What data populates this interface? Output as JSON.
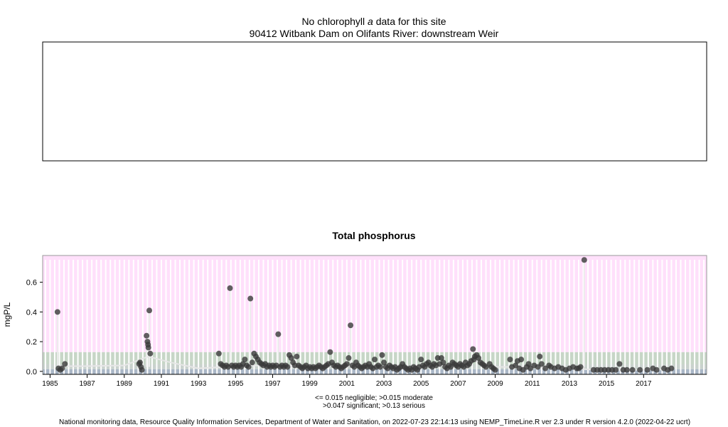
{
  "top_panel": {
    "title_line1_prefix": "No chlorophyll",
    "title_line1_italic": "a",
    "title_line1_suffix": "data for this site",
    "title_line2": "90412 Witbank Dam on Olifants River: downstream Weir"
  },
  "footer": {
    "legend_line1": "<= 0.015 negligible; >0.015 moderate",
    "legend_line2": ">0.047 significant; >0.13 serious",
    "credit": "National monitoring data, Resource Quality Information Services, Department of Water and Sanitation, on 2022-07-23 22:14:13 using NEMP_TimeLine.R ver 2.3 under R version 4.2.0 (2022-04-22 ucrt)"
  },
  "colors": {
    "serious": "#ffe0fb",
    "significant": "#c7d6c7",
    "moderate": "#c9d2cd",
    "negligible": "#a9b6c6",
    "point": "#3a3a3a",
    "trend": "#e6e6e6"
  },
  "chart_data": {
    "type": "scatter",
    "title": "Total phosphorus",
    "ylabel": "mgP/L",
    "xlabel": "",
    "xlim": [
      1984.6,
      2020.4
    ],
    "ylim": [
      -0.02,
      0.78
    ],
    "x_ticks": [
      1985,
      1987,
      1989,
      1991,
      1993,
      1995,
      1997,
      1999,
      2001,
      2003,
      2005,
      2007,
      2009,
      2011,
      2013,
      2015,
      2017
    ],
    "x_tick_labels": [
      "1985",
      "1987",
      "1989",
      "1991",
      "1993",
      "1995",
      "1997",
      "1999",
      "2001",
      "2003",
      "2005",
      "2007",
      "2009",
      "2011",
      "2013",
      "2015",
      "2017"
    ],
    "y_ticks": [
      0.0,
      0.2,
      0.4,
      0.6
    ],
    "y_tick_labels": [
      "0.0",
      "0.2",
      "0.4",
      "0.6"
    ],
    "thresholds": [
      {
        "name": "negligible",
        "upper": 0.015
      },
      {
        "name": "moderate",
        "upper": 0.047
      },
      {
        "name": "significant",
        "upper": 0.13
      },
      {
        "name": "serious",
        "upper": 0.78
      }
    ],
    "grid": "vertical",
    "series": [
      {
        "points": [
          [
            1985.4,
            0.4
          ],
          [
            1985.45,
            0.02
          ],
          [
            1985.55,
            0.01
          ],
          [
            1985.65,
            0.02
          ],
          [
            1985.8,
            0.05
          ],
          [
            1989.8,
            0.05
          ],
          [
            1989.85,
            0.06
          ],
          [
            1989.9,
            0.03
          ],
          [
            1989.95,
            0.01
          ],
          [
            1990.2,
            0.24
          ],
          [
            1990.25,
            0.2
          ],
          [
            1990.28,
            0.18
          ],
          [
            1990.3,
            0.16
          ],
          [
            1990.35,
            0.41
          ],
          [
            1990.4,
            0.12
          ],
          [
            1994.1,
            0.12
          ],
          [
            1994.2,
            0.05
          ],
          [
            1994.3,
            0.04
          ],
          [
            1994.4,
            0.03
          ],
          [
            1994.5,
            0.04
          ],
          [
            1994.6,
            0.03
          ],
          [
            1994.7,
            0.56
          ],
          [
            1994.8,
            0.04
          ],
          [
            1994.9,
            0.03
          ],
          [
            1995.0,
            0.04
          ],
          [
            1995.1,
            0.03
          ],
          [
            1995.2,
            0.04
          ],
          [
            1995.3,
            0.03
          ],
          [
            1995.4,
            0.05
          ],
          [
            1995.5,
            0.08
          ],
          [
            1995.6,
            0.04
          ],
          [
            1995.7,
            0.03
          ],
          [
            1995.8,
            0.49
          ],
          [
            1995.9,
            0.06
          ],
          [
            1996.0,
            0.12
          ],
          [
            1996.1,
            0.1
          ],
          [
            1996.2,
            0.08
          ],
          [
            1996.3,
            0.06
          ],
          [
            1996.4,
            0.05
          ],
          [
            1996.5,
            0.04
          ],
          [
            1996.6,
            0.05
          ],
          [
            1996.7,
            0.03
          ],
          [
            1996.8,
            0.04
          ],
          [
            1996.9,
            0.03
          ],
          [
            1997.0,
            0.04
          ],
          [
            1997.1,
            0.03
          ],
          [
            1997.2,
            0.04
          ],
          [
            1997.3,
            0.25
          ],
          [
            1997.4,
            0.03
          ],
          [
            1997.5,
            0.04
          ],
          [
            1997.6,
            0.03
          ],
          [
            1997.7,
            0.04
          ],
          [
            1997.8,
            0.03
          ],
          [
            1997.9,
            0.11
          ],
          [
            1998.0,
            0.09
          ],
          [
            1998.1,
            0.06
          ],
          [
            1998.2,
            0.04
          ],
          [
            1998.3,
            0.1
          ],
          [
            1998.4,
            0.04
          ],
          [
            1998.5,
            0.03
          ],
          [
            1998.6,
            0.02
          ],
          [
            1998.7,
            0.03
          ],
          [
            1998.8,
            0.04
          ],
          [
            1998.9,
            0.02
          ],
          [
            1999.0,
            0.03
          ],
          [
            1999.1,
            0.02
          ],
          [
            1999.2,
            0.03
          ],
          [
            1999.3,
            0.02
          ],
          [
            1999.4,
            0.03
          ],
          [
            1999.5,
            0.04
          ],
          [
            1999.6,
            0.03
          ],
          [
            1999.7,
            0.02
          ],
          [
            1999.8,
            0.03
          ],
          [
            1999.9,
            0.04
          ],
          [
            2000.0,
            0.05
          ],
          [
            2000.1,
            0.13
          ],
          [
            2000.2,
            0.06
          ],
          [
            2000.3,
            0.04
          ],
          [
            2000.4,
            0.03
          ],
          [
            2000.5,
            0.04
          ],
          [
            2000.6,
            0.03
          ],
          [
            2000.7,
            0.02
          ],
          [
            2000.8,
            0.03
          ],
          [
            2000.9,
            0.04
          ],
          [
            2001.0,
            0.05
          ],
          [
            2001.1,
            0.09
          ],
          [
            2001.2,
            0.31
          ],
          [
            2001.3,
            0.04
          ],
          [
            2001.4,
            0.03
          ],
          [
            2001.5,
            0.06
          ],
          [
            2001.6,
            0.04
          ],
          [
            2001.7,
            0.03
          ],
          [
            2001.8,
            0.02
          ],
          [
            2001.9,
            0.03
          ],
          [
            2002.0,
            0.04
          ],
          [
            2002.1,
            0.03
          ],
          [
            2002.2,
            0.05
          ],
          [
            2002.3,
            0.03
          ],
          [
            2002.4,
            0.02
          ],
          [
            2002.5,
            0.08
          ],
          [
            2002.6,
            0.03
          ],
          [
            2002.7,
            0.04
          ],
          [
            2002.8,
            0.03
          ],
          [
            2002.9,
            0.11
          ],
          [
            2003.0,
            0.06
          ],
          [
            2003.1,
            0.03
          ],
          [
            2003.2,
            0.02
          ],
          [
            2003.3,
            0.04
          ],
          [
            2003.4,
            0.03
          ],
          [
            2003.5,
            0.02
          ],
          [
            2003.6,
            0.03
          ],
          [
            2003.7,
            0.01
          ],
          [
            2003.8,
            0.02
          ],
          [
            2003.9,
            0.03
          ],
          [
            2004.0,
            0.05
          ],
          [
            2004.1,
            0.03
          ],
          [
            2004.2,
            0.02
          ],
          [
            2004.3,
            0.01
          ],
          [
            2004.4,
            0.02
          ],
          [
            2004.5,
            0.01
          ],
          [
            2004.6,
            0.03
          ],
          [
            2004.7,
            0.02
          ],
          [
            2004.8,
            0.01
          ],
          [
            2004.9,
            0.03
          ],
          [
            2005.0,
            0.08
          ],
          [
            2005.1,
            0.04
          ],
          [
            2005.2,
            0.03
          ],
          [
            2005.3,
            0.05
          ],
          [
            2005.4,
            0.06
          ],
          [
            2005.5,
            0.04
          ],
          [
            2005.6,
            0.03
          ],
          [
            2005.7,
            0.05
          ],
          [
            2005.8,
            0.04
          ],
          [
            2005.9,
            0.09
          ],
          [
            2006.0,
            0.05
          ],
          [
            2006.1,
            0.09
          ],
          [
            2006.2,
            0.06
          ],
          [
            2006.3,
            0.03
          ],
          [
            2006.4,
            0.02
          ],
          [
            2006.5,
            0.04
          ],
          [
            2006.6,
            0.03
          ],
          [
            2006.7,
            0.06
          ],
          [
            2006.8,
            0.05
          ],
          [
            2006.9,
            0.04
          ],
          [
            2007.0,
            0.03
          ],
          [
            2007.1,
            0.05
          ],
          [
            2007.2,
            0.04
          ],
          [
            2007.3,
            0.03
          ],
          [
            2007.4,
            0.06
          ],
          [
            2007.5,
            0.04
          ],
          [
            2007.6,
            0.05
          ],
          [
            2007.7,
            0.07
          ],
          [
            2007.8,
            0.15
          ],
          [
            2007.85,
            0.08
          ],
          [
            2007.9,
            0.1
          ],
          [
            2008.0,
            0.11
          ],
          [
            2008.1,
            0.09
          ],
          [
            2008.2,
            0.06
          ],
          [
            2008.3,
            0.05
          ],
          [
            2008.4,
            0.04
          ],
          [
            2008.5,
            0.03
          ],
          [
            2008.7,
            0.05
          ],
          [
            2008.8,
            0.03
          ],
          [
            2008.9,
            0.02
          ],
          [
            2009.0,
            0.01
          ],
          [
            2009.8,
            0.08
          ],
          [
            2009.9,
            0.03
          ],
          [
            2010.1,
            0.04
          ],
          [
            2010.2,
            0.07
          ],
          [
            2010.3,
            0.02
          ],
          [
            2010.4,
            0.08
          ],
          [
            2010.5,
            0.01
          ],
          [
            2010.7,
            0.03
          ],
          [
            2010.8,
            0.05
          ],
          [
            2010.9,
            0.02
          ],
          [
            2011.1,
            0.04
          ],
          [
            2011.3,
            0.03
          ],
          [
            2011.4,
            0.1
          ],
          [
            2011.5,
            0.05
          ],
          [
            2011.7,
            0.02
          ],
          [
            2011.9,
            0.04
          ],
          [
            2012.0,
            0.03
          ],
          [
            2012.2,
            0.02
          ],
          [
            2012.4,
            0.03
          ],
          [
            2012.6,
            0.02
          ],
          [
            2012.8,
            0.01
          ],
          [
            2013.0,
            0.02
          ],
          [
            2013.2,
            0.03
          ],
          [
            2013.4,
            0.02
          ],
          [
            2013.5,
            0.02
          ],
          [
            2013.6,
            0.03
          ],
          [
            2013.8,
            0.75
          ],
          [
            2014.3,
            0.01
          ],
          [
            2014.5,
            0.01
          ],
          [
            2014.7,
            0.01
          ],
          [
            2014.9,
            0.01
          ],
          [
            2015.1,
            0.01
          ],
          [
            2015.3,
            0.01
          ],
          [
            2015.5,
            0.01
          ],
          [
            2015.7,
            0.05
          ],
          [
            2015.9,
            0.01
          ],
          [
            2016.1,
            0.01
          ],
          [
            2016.4,
            0.01
          ],
          [
            2016.8,
            0.01
          ],
          [
            2017.2,
            0.01
          ],
          [
            2017.5,
            0.02
          ],
          [
            2017.7,
            0.01
          ],
          [
            2018.1,
            0.02
          ],
          [
            2018.3,
            0.01
          ],
          [
            2018.5,
            0.02
          ]
        ]
      }
    ],
    "trend": [
      [
        1985.4,
        0.035
      ],
      [
        1987,
        0.035
      ],
      [
        1989,
        0.04
      ],
      [
        1990.3,
        0.1
      ],
      [
        1991.5,
        0.06
      ],
      [
        1993,
        0.02
      ],
      [
        1994.3,
        0.03
      ],
      [
        1996,
        0.04
      ],
      [
        1998,
        0.035
      ],
      [
        2000,
        0.035
      ],
      [
        2002,
        0.035
      ],
      [
        2004,
        0.025
      ],
      [
        2006,
        0.035
      ],
      [
        2007.9,
        0.07
      ],
      [
        2009,
        0.03
      ],
      [
        2011,
        0.03
      ],
      [
        2013,
        0.02
      ],
      [
        2014.5,
        0.01
      ],
      [
        2016.5,
        0.01
      ],
      [
        2018.5,
        0.012
      ]
    ]
  }
}
